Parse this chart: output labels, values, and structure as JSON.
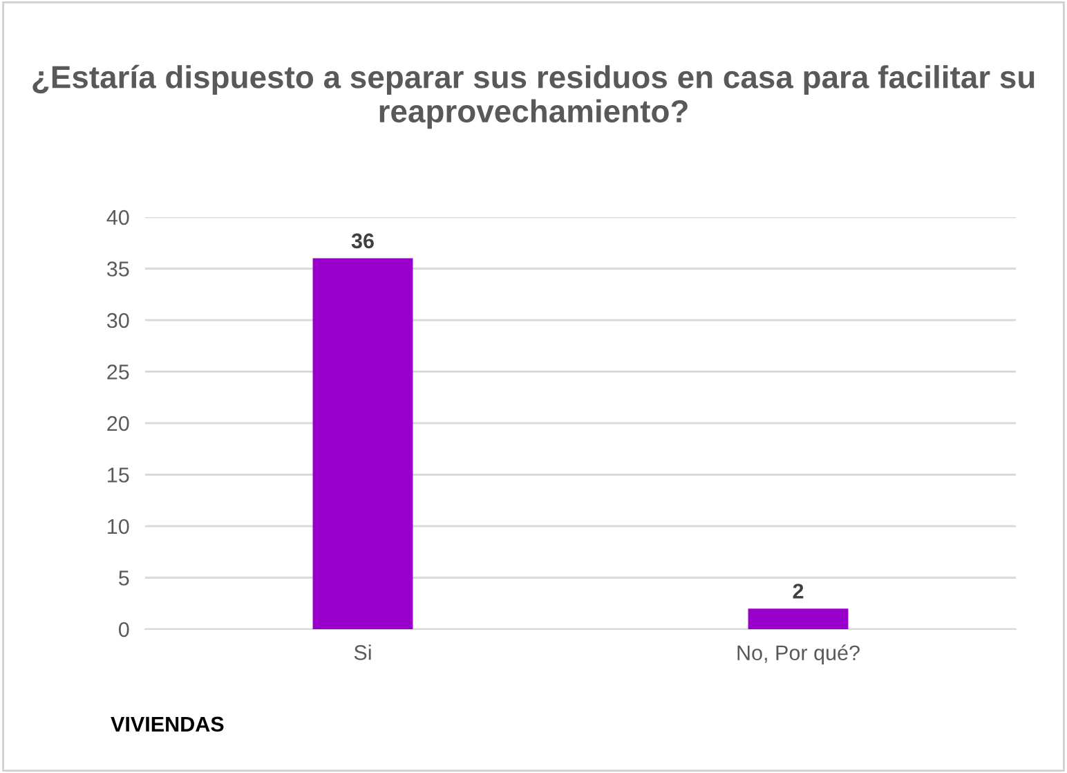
{
  "chart_data": {
    "type": "bar",
    "title": "¿Estaría dispuesto a separar sus residuos en casa para facilitar su reaprovechamiento?",
    "categories": [
      "Si",
      "No, Por qué?"
    ],
    "values": [
      36,
      2
    ],
    "color": "#9900cc",
    "ylim": [
      0,
      40
    ],
    "yticks": [
      0,
      5,
      10,
      15,
      20,
      25,
      30,
      35,
      40
    ],
    "grid": "y",
    "data_labels": true,
    "legend": false,
    "annotations": [
      "VIVIENDAS"
    ]
  }
}
